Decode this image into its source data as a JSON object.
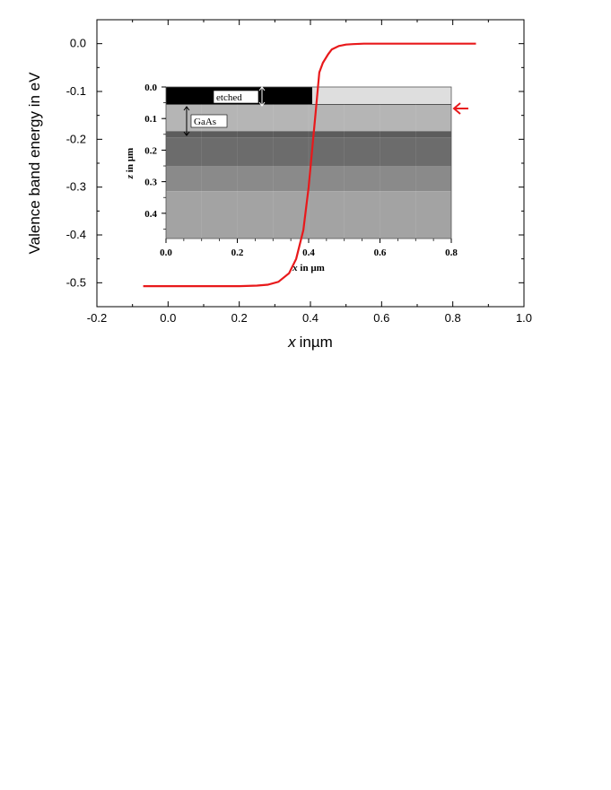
{
  "chart_data": [
    {
      "type": "line",
      "xlabel_italic": "x",
      "xlabel_rest": "inµm",
      "ylabel": "Valence band energy in eV",
      "xlim": [
        -0.2,
        1.0
      ],
      "ylim": [
        -0.55,
        0.05
      ],
      "xticks": [
        -0.2,
        0.0,
        0.2,
        0.4,
        0.6,
        0.8,
        1.0
      ],
      "xtick_labels": [
        "-0.2",
        "0.0",
        "0.2",
        "0.4",
        "0.6",
        "0.8",
        "1.0"
      ],
      "yticks": [
        0.0,
        -0.1,
        -0.2,
        -0.3,
        -0.4,
        -0.5
      ],
      "ytick_labels": [
        "0.0",
        "-0.1",
        "-0.2",
        "-0.3",
        "-0.4",
        "-0.5"
      ],
      "series": [
        {
          "color": "#e8191b",
          "x": [
            -0.07,
            0.0,
            0.1,
            0.2,
            0.25,
            0.28,
            0.31,
            0.34,
            0.36,
            0.38,
            0.395,
            0.405,
            0.415,
            0.425,
            0.435,
            0.45,
            0.46,
            0.48,
            0.5,
            0.52,
            0.55,
            0.6,
            0.65,
            0.7,
            0.8,
            0.865
          ],
          "y": [
            -0.507,
            -0.507,
            -0.507,
            -0.507,
            -0.506,
            -0.504,
            -0.498,
            -0.48,
            -0.45,
            -0.39,
            -0.3,
            -0.22,
            -0.14,
            -0.06,
            -0.04,
            -0.022,
            -0.012,
            -0.005,
            -0.002,
            -0.001,
            0.0,
            0.0,
            0.0,
            0.0,
            0.0,
            0.0
          ]
        }
      ]
    },
    {
      "type": "heatmap",
      "xlabel_italic": "x",
      "xlabel_rest": " in µm",
      "ylabel_italic": "z",
      "ylabel_rest": " in µm",
      "xlim": [
        0.0,
        0.8
      ],
      "ylim": [
        0.48,
        0.0
      ],
      "xtick_labels": [
        "0.0",
        "0.2",
        "0.4",
        "0.6",
        "0.8"
      ],
      "ytick_labels": [
        "0.0",
        "0.1",
        "0.2",
        "0.3",
        "0.4"
      ],
      "layers": [
        {
          "z_top": 0.055,
          "z_bottom": 0.14,
          "color": "#b5b5b5"
        },
        {
          "z_top": 0.14,
          "z_bottom": 0.16,
          "color": "#5c5c5c"
        },
        {
          "z_top": 0.16,
          "z_bottom": 0.25,
          "color": "#6c6c6c"
        },
        {
          "z_top": 0.25,
          "z_bottom": 0.33,
          "color": "#8a8a8a"
        },
        {
          "z_top": 0.33,
          "z_bottom": 0.48,
          "color": "#a3a3a3"
        }
      ],
      "etched_region": {
        "x_end": 0.41,
        "z_end": 0.055,
        "color": "#000000"
      },
      "unetched_top": {
        "x_start": 0.41,
        "color": "#dedede"
      },
      "annotations": [
        "etched",
        "GaAs"
      ]
    }
  ]
}
